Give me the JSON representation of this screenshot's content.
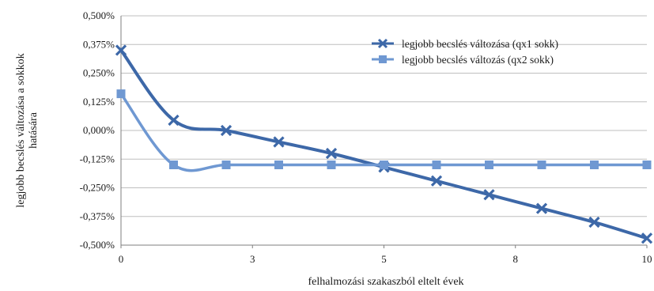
{
  "chart_data": {
    "type": "line",
    "title": "",
    "xlabel": "felhalmozási szakaszból eltelt évek",
    "ylabel_lines": [
      "legjobb becslés változása a sokkok",
      "hatására"
    ],
    "xlim": [
      0,
      10
    ],
    "ylim": [
      -0.005,
      0.005
    ],
    "x_ticks": [
      {
        "value": 0,
        "label": "0"
      },
      {
        "value": 2.5,
        "label": "3"
      },
      {
        "value": 5,
        "label": "5"
      },
      {
        "value": 7.5,
        "label": "8"
      },
      {
        "value": 10,
        "label": "10"
      }
    ],
    "y_ticks": [
      {
        "value": 0.005,
        "label": "0,500%"
      },
      {
        "value": 0.00375,
        "label": "0,375%"
      },
      {
        "value": 0.0025,
        "label": "0,250%"
      },
      {
        "value": 0.00125,
        "label": "0,125%"
      },
      {
        "value": 0,
        "label": "0,000%"
      },
      {
        "value": -0.00125,
        "label": "-0,125%"
      },
      {
        "value": -0.0025,
        "label": "-0,250%"
      },
      {
        "value": -0.00375,
        "label": "-0,375%"
      },
      {
        "value": -0.005,
        "label": "-0,500%"
      }
    ],
    "grid": "horizontal",
    "legend_position": "top-right",
    "series": [
      {
        "name": "legjobb becslés változása (qx1 sokk)",
        "color": "#3d68a8",
        "marker": "x",
        "x": [
          0,
          1,
          2,
          3,
          4,
          5,
          6,
          7,
          8,
          9,
          10
        ],
        "y": [
          0.0035,
          0.00045,
          0.0,
          -0.0005,
          -0.001,
          -0.0016,
          -0.0022,
          -0.0028,
          -0.0034,
          -0.004,
          -0.0047
        ]
      },
      {
        "name": "legjobb becslés változás (qx2 sokk)",
        "color": "#6f98d2",
        "marker": "square",
        "x": [
          0,
          1,
          2,
          3,
          4,
          5,
          6,
          7,
          8,
          9,
          10
        ],
        "y": [
          0.0016,
          -0.0015,
          -0.0015,
          -0.0015,
          -0.0015,
          -0.0015,
          -0.0015,
          -0.0015,
          -0.0015,
          -0.0015,
          -0.0015
        ]
      }
    ]
  }
}
